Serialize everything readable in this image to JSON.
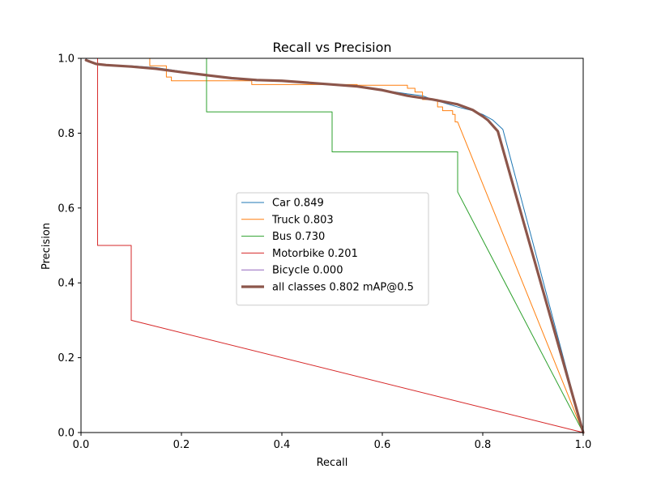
{
  "chart_data": {
    "type": "line",
    "title": "Recall vs Precision",
    "xlabel": "Recall",
    "ylabel": "Precision",
    "xlim": [
      0,
      1
    ],
    "ylim": [
      0,
      1
    ],
    "xticks": [
      "0.0",
      "0.2",
      "0.4",
      "0.6",
      "0.8",
      "1.0"
    ],
    "yticks": [
      "0.0",
      "0.2",
      "0.4",
      "0.6",
      "0.8",
      "1.0"
    ],
    "grid": false,
    "legend_position": "center",
    "series": [
      {
        "name": "Car 0.849",
        "color": "#1f77b4",
        "linewidth": "thin",
        "points": [
          [
            0.01,
            1.0
          ],
          [
            0.015,
            0.99
          ],
          [
            0.03,
            0.985
          ],
          [
            0.05,
            0.982
          ],
          [
            0.1,
            0.98
          ],
          [
            0.15,
            0.975
          ],
          [
            0.2,
            0.965
          ],
          [
            0.25,
            0.955
          ],
          [
            0.3,
            0.945
          ],
          [
            0.35,
            0.94
          ],
          [
            0.4,
            0.94
          ],
          [
            0.45,
            0.935
          ],
          [
            0.5,
            0.93
          ],
          [
            0.55,
            0.925
          ],
          [
            0.6,
            0.915
          ],
          [
            0.65,
            0.905
          ],
          [
            0.68,
            0.9
          ],
          [
            0.7,
            0.89
          ],
          [
            0.75,
            0.87
          ],
          [
            0.78,
            0.86
          ],
          [
            0.8,
            0.85
          ],
          [
            0.82,
            0.835
          ],
          [
            0.84,
            0.81
          ],
          [
            1.0,
            0.0
          ]
        ]
      },
      {
        "name": "Truck 0.803",
        "color": "#ff7f0e",
        "linewidth": "thin",
        "points": [
          [
            0.0,
            1.0
          ],
          [
            0.137,
            1.0
          ],
          [
            0.137,
            0.98
          ],
          [
            0.17,
            0.98
          ],
          [
            0.17,
            0.95
          ],
          [
            0.18,
            0.95
          ],
          [
            0.18,
            0.94
          ],
          [
            0.34,
            0.94
          ],
          [
            0.34,
            0.93
          ],
          [
            0.55,
            0.93
          ],
          [
            0.55,
            0.928
          ],
          [
            0.65,
            0.928
          ],
          [
            0.65,
            0.92
          ],
          [
            0.665,
            0.92
          ],
          [
            0.665,
            0.91
          ],
          [
            0.68,
            0.91
          ],
          [
            0.68,
            0.89
          ],
          [
            0.71,
            0.89
          ],
          [
            0.71,
            0.87
          ],
          [
            0.72,
            0.87
          ],
          [
            0.72,
            0.86
          ],
          [
            0.74,
            0.86
          ],
          [
            0.74,
            0.85
          ],
          [
            0.745,
            0.85
          ],
          [
            0.745,
            0.83
          ],
          [
            0.75,
            0.83
          ],
          [
            1.0,
            0.0
          ]
        ]
      },
      {
        "name": "Bus 0.730",
        "color": "#2ca02c",
        "linewidth": "thin",
        "points": [
          [
            0.0,
            1.0
          ],
          [
            0.25,
            1.0
          ],
          [
            0.25,
            0.857
          ],
          [
            0.5,
            0.857
          ],
          [
            0.5,
            0.75
          ],
          [
            0.75,
            0.75
          ],
          [
            0.75,
            0.643
          ],
          [
            1.0,
            0.0
          ]
        ]
      },
      {
        "name": "Motorbike 0.201",
        "color": "#d62728",
        "linewidth": "thin",
        "points": [
          [
            0.0,
            1.0
          ],
          [
            0.033,
            1.0
          ],
          [
            0.033,
            0.5
          ],
          [
            0.1,
            0.5
          ],
          [
            0.1,
            0.3
          ],
          [
            1.0,
            0.0
          ]
        ]
      },
      {
        "name": "Bicycle 0.000",
        "color": "#9467bd",
        "linewidth": "thin",
        "points": []
      },
      {
        "name": "all classes 0.802 mAP@0.5",
        "color": "#8c564b",
        "linewidth": "thick",
        "points": [
          [
            0.01,
            0.995
          ],
          [
            0.02,
            0.99
          ],
          [
            0.03,
            0.985
          ],
          [
            0.05,
            0.982
          ],
          [
            0.1,
            0.978
          ],
          [
            0.15,
            0.972
          ],
          [
            0.2,
            0.963
          ],
          [
            0.25,
            0.955
          ],
          [
            0.3,
            0.947
          ],
          [
            0.35,
            0.942
          ],
          [
            0.4,
            0.94
          ],
          [
            0.45,
            0.935
          ],
          [
            0.5,
            0.93
          ],
          [
            0.55,
            0.925
          ],
          [
            0.6,
            0.915
          ],
          [
            0.65,
            0.9
          ],
          [
            0.7,
            0.89
          ],
          [
            0.75,
            0.877
          ],
          [
            0.78,
            0.862
          ],
          [
            0.8,
            0.845
          ],
          [
            0.81,
            0.835
          ],
          [
            0.83,
            0.805
          ],
          [
            1.0,
            0.0
          ]
        ]
      }
    ]
  }
}
